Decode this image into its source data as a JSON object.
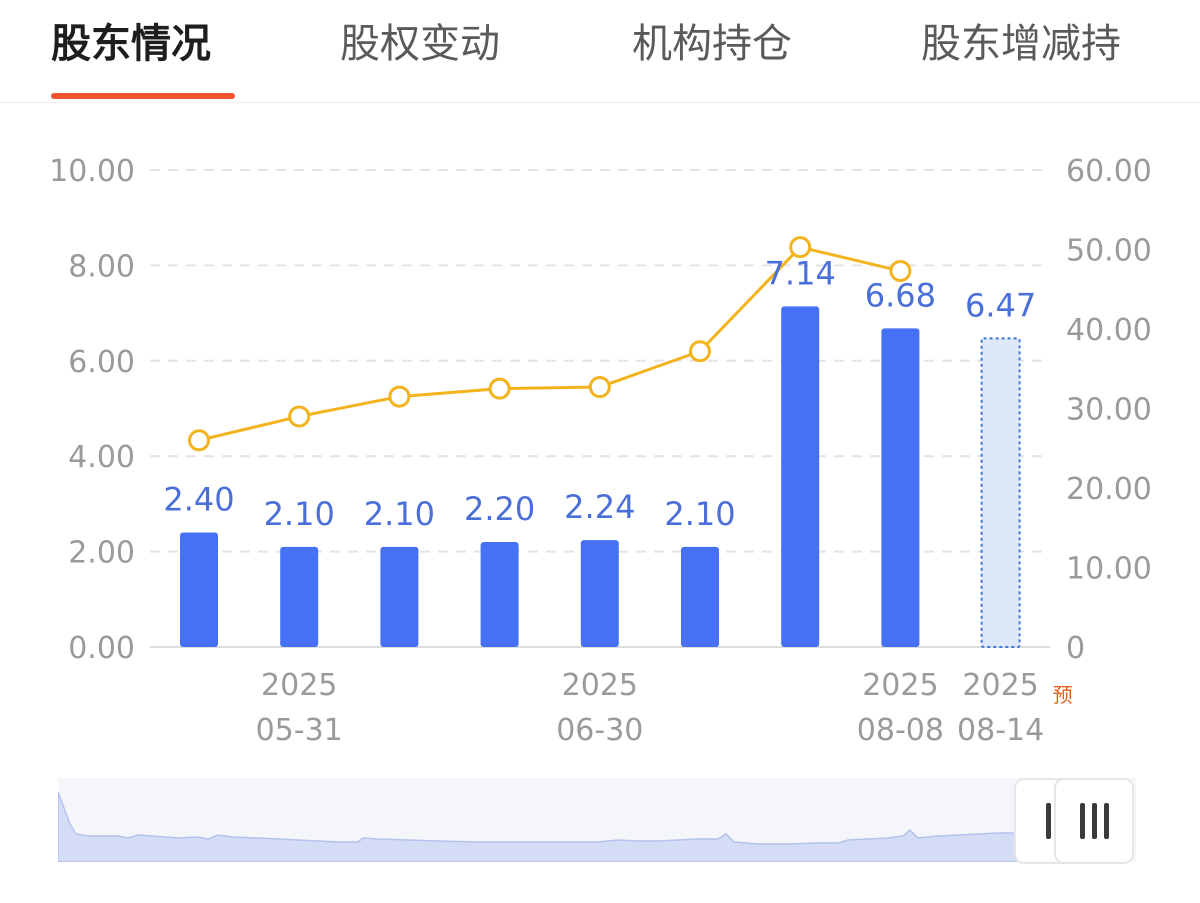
{
  "tabs": [
    {
      "label": "股东情况",
      "active": true
    },
    {
      "label": "股权变动",
      "active": false
    },
    {
      "label": "机构持仓",
      "active": false
    },
    {
      "label": "股东增减持",
      "active": false
    }
  ],
  "colors": {
    "accent": "#f0542a",
    "bar": "#4671f5",
    "line": "#f3b31c",
    "label": "#4a6fd8",
    "forecast_fill": "#dde8fb",
    "forecast_border": "#3f78d6",
    "forecast_tag": "#e0621c"
  },
  "chart_data": {
    "type": "bar",
    "left_axis": {
      "ticks": [
        "0.00",
        "2.00",
        "4.00",
        "6.00",
        "8.00",
        "10.00"
      ],
      "ylim": [
        0,
        10
      ]
    },
    "right_axis": {
      "ticks": [
        "0",
        "10.00",
        "20.00",
        "30.00",
        "40.00",
        "50.00",
        "60.00"
      ],
      "ylim": [
        0,
        60
      ]
    },
    "bars": [
      {
        "value": 2.4,
        "label": "2.40"
      },
      {
        "value": 2.1,
        "label": "2.10"
      },
      {
        "value": 2.1,
        "label": "2.10"
      },
      {
        "value": 2.2,
        "label": "2.20"
      },
      {
        "value": 2.24,
        "label": "2.24"
      },
      {
        "value": 2.1,
        "label": "2.10"
      },
      {
        "value": 7.14,
        "label": "7.14"
      },
      {
        "value": 6.68,
        "label": "6.68"
      },
      {
        "value": 6.47,
        "label": "6.47",
        "forecast": true
      }
    ],
    "line": {
      "axis": "right",
      "values": [
        26,
        29,
        31.5,
        32.5,
        32.7,
        37.2,
        50.3,
        47.3
      ]
    },
    "x_labels": [
      {
        "index": 1,
        "year": "2025",
        "date": "05-31"
      },
      {
        "index": 4,
        "year": "2025",
        "date": "06-30"
      },
      {
        "index": 7,
        "year": "2025",
        "date": "08-08"
      },
      {
        "index": 8,
        "year": "2025",
        "date": "08-14",
        "tag": "预"
      }
    ],
    "grid": "dashed horizontal"
  }
}
